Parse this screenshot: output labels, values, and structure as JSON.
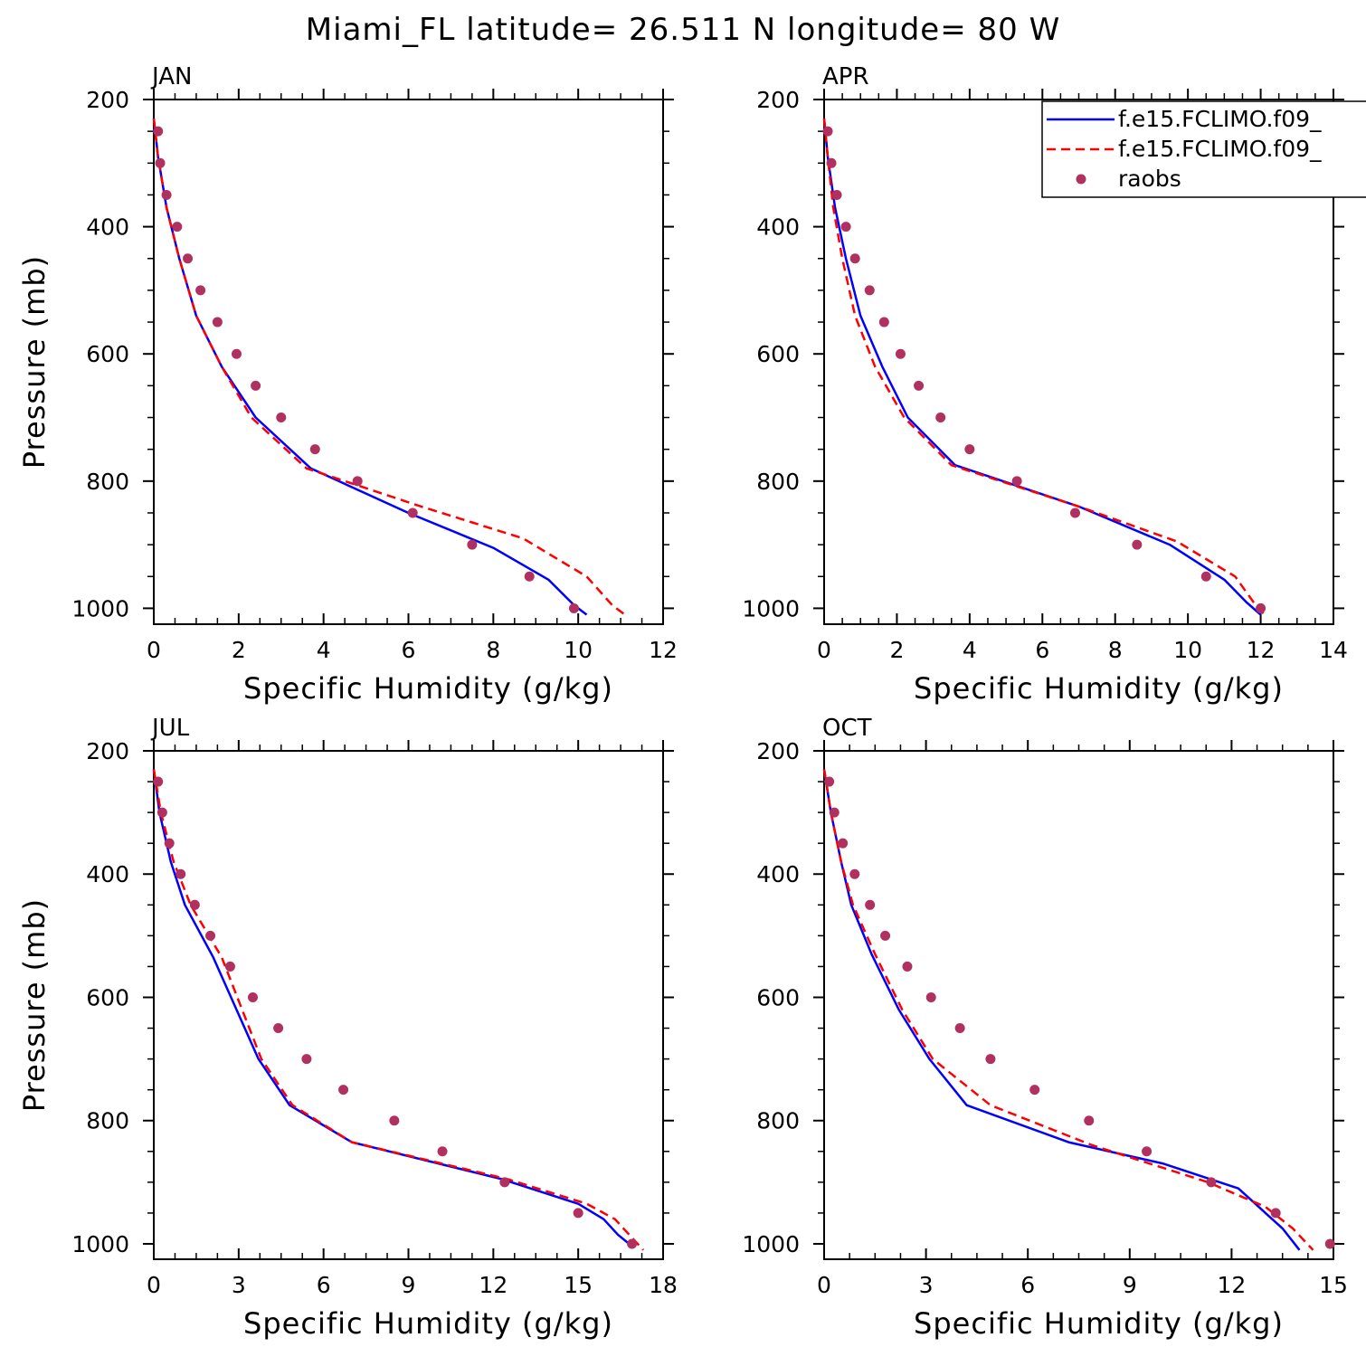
{
  "title": "Miami_FL  latitude= 26.511 N longitude= 80 W",
  "legend": {
    "entries": [
      {
        "label": "f.e15.FCLIMO.f09_",
        "color": "#0000ff",
        "style": "solid"
      },
      {
        "label": "f.e15.FCLIMO.f09_",
        "color": "#ff0000",
        "style": "dashed"
      },
      {
        "label": "raobs",
        "color": "#b03060",
        "style": "marker"
      }
    ]
  },
  "chart_data": [
    {
      "type": "line",
      "panel": "JAN",
      "xlabel": "Specific Humidity (g/kg)",
      "ylabel": "Pressure (mb)",
      "xlim": [
        0,
        12
      ],
      "ylim": [
        200,
        1025
      ],
      "y_reversed": true,
      "xticks": [
        "0",
        "2",
        "4",
        "6",
        "8",
        "10",
        "12"
      ],
      "yticks": [
        "200",
        "400",
        "600",
        "800",
        "1000"
      ],
      "series": [
        {
          "color": "#0000ff",
          "dash": "solid",
          "x": [
            0.0,
            0.1,
            0.3,
            0.6,
            1.0,
            1.6,
            2.4,
            3.7,
            6.0,
            8.0,
            9.3,
            9.9,
            10.2
          ],
          "y": [
            230,
            290,
            370,
            450,
            540,
            620,
            700,
            780,
            850,
            905,
            955,
            995,
            1010
          ]
        },
        {
          "color": "#ff0000",
          "dash": "dashed",
          "x": [
            0.0,
            0.1,
            0.3,
            0.6,
            1.0,
            1.6,
            2.3,
            3.6,
            6.3,
            8.7,
            10.2,
            10.8,
            11.1
          ],
          "y": [
            230,
            290,
            370,
            450,
            540,
            620,
            700,
            780,
            840,
            890,
            950,
            995,
            1010
          ]
        },
        {
          "color": "#b03060",
          "dash": "marker",
          "x": [
            0.1,
            0.15,
            0.3,
            0.55,
            0.8,
            1.1,
            1.5,
            1.95,
            2.4,
            3.0,
            3.8,
            4.8,
            6.1,
            7.5,
            8.85,
            9.9
          ],
          "y": [
            250,
            300,
            350,
            400,
            450,
            500,
            550,
            600,
            650,
            700,
            750,
            800,
            850,
            900,
            950,
            1000
          ]
        }
      ]
    },
    {
      "type": "line",
      "panel": "APR",
      "xlabel": "Specific Humidity (g/kg)",
      "ylabel": "Pressure (mb)",
      "xlim": [
        0,
        14
      ],
      "ylim": [
        200,
        1025
      ],
      "y_reversed": true,
      "xticks": [
        "0",
        "2",
        "4",
        "6",
        "8",
        "10",
        "12",
        "14"
      ],
      "yticks": [
        "200",
        "400",
        "600",
        "800",
        "1000"
      ],
      "series": [
        {
          "color": "#0000ff",
          "dash": "solid",
          "x": [
            0.0,
            0.1,
            0.3,
            0.6,
            1.0,
            1.6,
            2.3,
            3.6,
            7.0,
            9.5,
            11.0,
            11.6,
            12.0
          ],
          "y": [
            230,
            290,
            370,
            450,
            540,
            620,
            700,
            775,
            840,
            900,
            955,
            990,
            1010
          ]
        },
        {
          "color": "#ff0000",
          "dash": "dashed",
          "x": [
            0.0,
            0.1,
            0.25,
            0.5,
            0.85,
            1.4,
            2.2,
            3.5,
            7.0,
            9.7,
            11.3,
            11.8,
            12.1
          ],
          "y": [
            230,
            290,
            370,
            450,
            540,
            620,
            700,
            775,
            840,
            895,
            950,
            990,
            1010
          ]
        },
        {
          "color": "#b03060",
          "dash": "marker",
          "x": [
            0.1,
            0.2,
            0.35,
            0.6,
            0.85,
            1.25,
            1.65,
            2.1,
            2.6,
            3.2,
            4.0,
            5.3,
            6.9,
            8.6,
            10.5,
            12.0
          ],
          "y": [
            250,
            300,
            350,
            400,
            450,
            500,
            550,
            600,
            650,
            700,
            750,
            800,
            850,
            900,
            950,
            1000
          ]
        }
      ]
    },
    {
      "type": "line",
      "panel": "JUL",
      "xlabel": "Specific Humidity (g/kg)",
      "ylabel": "Pressure (mb)",
      "xlim": [
        0,
        18
      ],
      "ylim": [
        200,
        1025
      ],
      "y_reversed": true,
      "xticks": [
        "0",
        "3",
        "6",
        "9",
        "12",
        "15",
        "18"
      ],
      "yticks": [
        "200",
        "400",
        "600",
        "800",
        "1000"
      ],
      "series": [
        {
          "color": "#0000ff",
          "dash": "solid",
          "x": [
            0.0,
            0.2,
            0.6,
            1.1,
            2.1,
            3.7,
            4.8,
            7.0,
            12.3,
            15.0,
            15.9,
            16.4,
            16.8,
            17.0
          ],
          "y": [
            230,
            300,
            380,
            450,
            535,
            700,
            775,
            835,
            895,
            935,
            960,
            985,
            1000,
            1005
          ]
        },
        {
          "color": "#ff0000",
          "dash": "dashed",
          "x": [
            0.0,
            0.25,
            0.7,
            1.3,
            2.4,
            3.8,
            4.9,
            7.0,
            12.5,
            15.3,
            16.3,
            16.9,
            17.3
          ],
          "y": [
            230,
            300,
            380,
            450,
            535,
            700,
            775,
            835,
            895,
            935,
            960,
            990,
            1010
          ]
        },
        {
          "color": "#b03060",
          "dash": "marker",
          "x": [
            0.15,
            0.3,
            0.55,
            0.95,
            1.45,
            2.0,
            2.7,
            3.5,
            4.4,
            5.4,
            6.7,
            8.5,
            10.2,
            12.4,
            15.0,
            16.9
          ],
          "y": [
            250,
            300,
            350,
            400,
            450,
            500,
            550,
            600,
            650,
            700,
            750,
            800,
            850,
            900,
            950,
            1000
          ]
        }
      ]
    },
    {
      "type": "line",
      "panel": "OCT",
      "xlabel": "Specific Humidity (g/kg)",
      "ylabel": "Pressure (mb)",
      "xlim": [
        0,
        15
      ],
      "ylim": [
        200,
        1025
      ],
      "y_reversed": true,
      "xticks": [
        "0",
        "3",
        "6",
        "9",
        "12",
        "15"
      ],
      "yticks": [
        "200",
        "400",
        "600",
        "800",
        "1000"
      ],
      "series": [
        {
          "color": "#0000ff",
          "dash": "solid",
          "x": [
            0.0,
            0.2,
            0.5,
            0.8,
            1.4,
            2.2,
            3.1,
            4.2,
            7.2,
            10.0,
            12.2,
            13.0,
            13.5,
            14.0
          ],
          "y": [
            230,
            300,
            380,
            450,
            530,
            620,
            700,
            775,
            835,
            870,
            910,
            950,
            975,
            1010
          ]
        },
        {
          "color": "#ff0000",
          "dash": "dashed",
          "x": [
            0.0,
            0.2,
            0.5,
            0.85,
            1.5,
            2.3,
            3.2,
            4.9,
            7.9,
            11.3,
            13.0,
            13.8,
            14.4
          ],
          "y": [
            230,
            300,
            380,
            450,
            530,
            620,
            700,
            775,
            840,
            900,
            940,
            975,
            1010
          ]
        },
        {
          "color": "#b03060",
          "dash": "marker",
          "x": [
            0.15,
            0.3,
            0.55,
            0.9,
            1.35,
            1.8,
            2.45,
            3.15,
            4.0,
            4.9,
            6.2,
            7.8,
            9.5,
            11.4,
            13.3,
            14.9
          ],
          "y": [
            250,
            300,
            350,
            400,
            450,
            500,
            550,
            600,
            650,
            700,
            750,
            800,
            850,
            900,
            950,
            1000
          ]
        }
      ]
    }
  ]
}
